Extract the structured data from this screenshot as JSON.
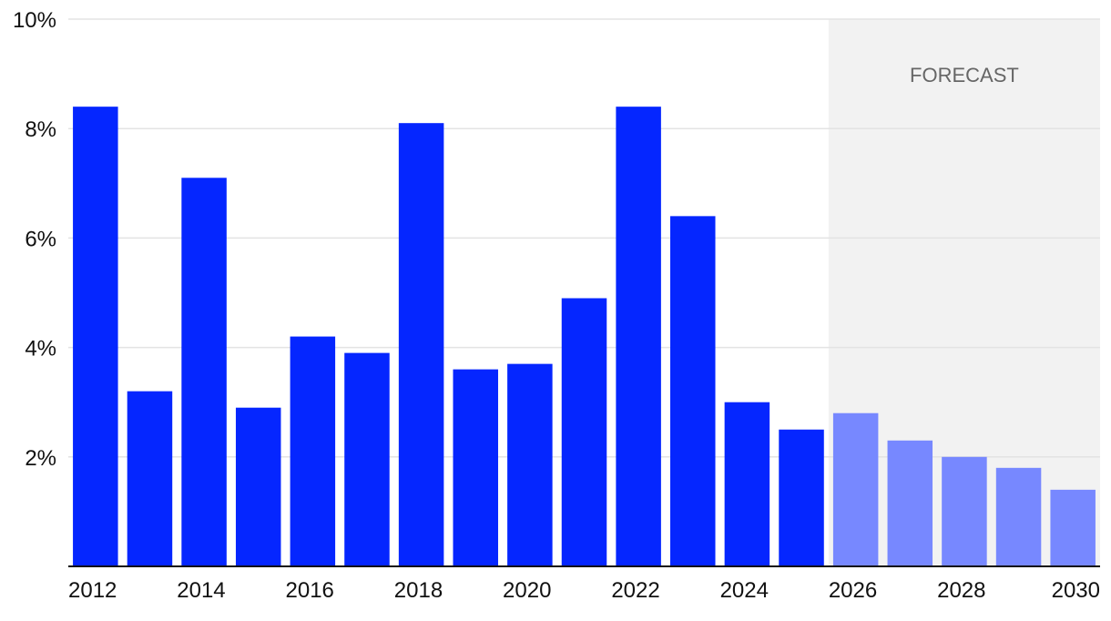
{
  "chart_data": {
    "type": "bar",
    "categories": [
      "2012",
      "2013",
      "2014",
      "2015",
      "2016",
      "2017",
      "2018",
      "2019",
      "2020",
      "2021",
      "2022",
      "2023",
      "2024",
      "2025",
      "2026",
      "2027",
      "2028",
      "2029",
      "2030"
    ],
    "values": [
      8.4,
      3.2,
      7.1,
      2.9,
      4.2,
      3.9,
      8.1,
      3.6,
      3.7,
      4.9,
      8.4,
      6.4,
      3.0,
      2.5,
      2.8,
      2.3,
      2.0,
      1.8,
      1.4
    ],
    "forecast_from": "2026",
    "forecast_label": "FORECAST",
    "x_tick_labels": [
      "2012",
      "2014",
      "2016",
      "2018",
      "2020",
      "2022",
      "2024",
      "2026",
      "2028",
      "2030"
    ],
    "y_tick_labels": [
      "10%",
      "8%",
      "6%",
      "4%",
      "2%"
    ],
    "y_ticks": [
      10,
      8,
      6,
      4,
      2
    ],
    "ylim": [
      0,
      10
    ],
    "title": "",
    "xlabel": "",
    "ylabel": "",
    "grid": true,
    "legend": "none",
    "colors": {
      "actual": "#0526ff",
      "forecast": "#7788ff",
      "forecast_region": "#f2f2f2",
      "grid": "#e3e3e3",
      "axis": "#111111"
    }
  }
}
